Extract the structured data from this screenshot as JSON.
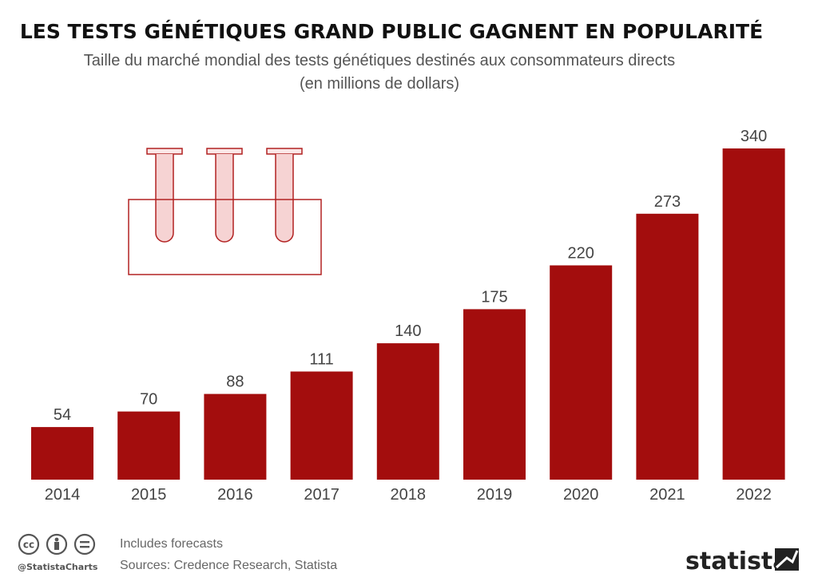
{
  "chart_data": {
    "type": "bar",
    "title": "LES TESTS GÉNÉTIQUES GRAND PUBLIC GAGNENT EN POPULARITÉ",
    "subtitle_line1": "Taille du marché mondial des tests génétiques destinés aux consommateurs directs",
    "subtitle_line2": "(en millions de dollars)",
    "categories": [
      "2014",
      "2015",
      "2016",
      "2017",
      "2018",
      "2019",
      "2020",
      "2021",
      "2022"
    ],
    "values": [
      54,
      70,
      88,
      111,
      140,
      175,
      220,
      273,
      340
    ],
    "xlabel": "",
    "ylabel": "",
    "ylim": [
      0,
      340
    ],
    "grid": false,
    "bar_color": "#a30d0d"
  },
  "footer": {
    "note": "Includes forecasts",
    "sources": "Sources: Credence Research, Statista",
    "handle": "@StatistaCharts",
    "brand": "statista",
    "license_icons": [
      "cc-icon",
      "attribution-icon",
      "no-derivatives-icon"
    ]
  },
  "illustration": {
    "icon": "test-tubes-icon",
    "color": "#b22222"
  }
}
